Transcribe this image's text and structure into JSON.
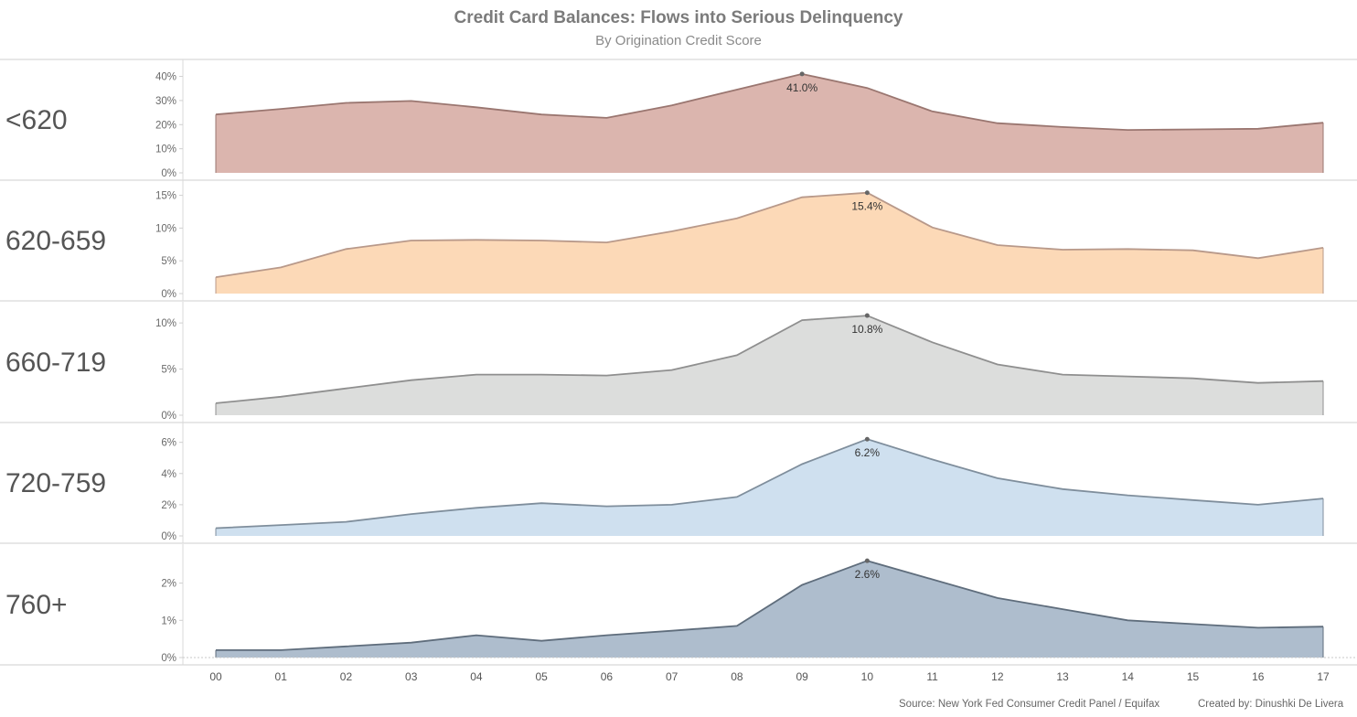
{
  "header": {
    "title": "Credit Card Balances: Flows into Serious Delinquency",
    "subtitle": "By Origination Credit Score"
  },
  "footer": {
    "source": "Source: New York Fed Consumer Credit Panel / Equifax",
    "credit": "Created by: Dinushki De Livera"
  },
  "chart_data": {
    "type": "area",
    "categories": [
      "00",
      "01",
      "02",
      "03",
      "04",
      "05",
      "06",
      "07",
      "08",
      "09",
      "10",
      "11",
      "12",
      "13",
      "14",
      "15",
      "16",
      "17"
    ],
    "series": [
      {
        "name": "<620",
        "color": "#dbb5ae",
        "line_color": "#9a7670",
        "values": [
          24.2,
          26.5,
          29.0,
          29.8,
          27.2,
          24.2,
          22.8,
          28.0,
          34.5,
          41.0,
          35.2,
          25.5,
          20.6,
          19.0,
          17.8,
          18.0,
          18.3,
          20.8
        ],
        "ticks": [
          0,
          10,
          20,
          30,
          40
        ],
        "ymax": 44,
        "peak_index": 9,
        "peak_label": "41.0%"
      },
      {
        "name": "620-659",
        "color": "#fcd9b7",
        "line_color": "#b8998a",
        "values": [
          2.5,
          4.0,
          6.8,
          8.1,
          8.2,
          8.1,
          7.8,
          9.5,
          11.5,
          14.7,
          15.4,
          10.1,
          7.4,
          6.7,
          6.8,
          6.6,
          5.4,
          7.0
        ],
        "ticks": [
          0,
          5,
          10,
          15
        ],
        "ymax": 16.2,
        "peak_index": 10,
        "peak_label": "15.4%"
      },
      {
        "name": "660-719",
        "color": "#dcdddc",
        "line_color": "#8f8f8f",
        "values": [
          1.3,
          2.0,
          2.9,
          3.8,
          4.4,
          4.4,
          4.3,
          4.9,
          6.5,
          10.3,
          10.8,
          7.9,
          5.5,
          4.4,
          4.2,
          4.0,
          3.5,
          3.7
        ],
        "ticks": [
          0,
          5,
          10
        ],
        "ymax": 11.5,
        "peak_index": 10,
        "peak_label": "10.8%"
      },
      {
        "name": "720-759",
        "color": "#cfe0ef",
        "line_color": "#7f8e9c",
        "values": [
          0.5,
          0.7,
          0.9,
          1.4,
          1.8,
          2.1,
          1.9,
          2.0,
          2.5,
          4.6,
          6.2,
          4.9,
          3.7,
          3.0,
          2.6,
          2.3,
          2.0,
          2.4
        ],
        "ticks": [
          0,
          2,
          4,
          6
        ],
        "ymax": 6.8,
        "peak_index": 10,
        "peak_label": "6.2%"
      },
      {
        "name": "760+",
        "color": "#aebdcd",
        "line_color": "#5f6d7c",
        "values": [
          0.2,
          0.2,
          0.3,
          0.4,
          0.6,
          0.45,
          0.6,
          0.72,
          0.85,
          1.95,
          2.6,
          2.1,
          1.6,
          1.3,
          1.0,
          0.9,
          0.8,
          0.83
        ],
        "ticks": [
          0,
          1,
          2
        ],
        "ymax": 2.85,
        "peak_index": 10,
        "peak_label": "2.6%"
      }
    ],
    "tick_suffix": "%",
    "xlabel": "",
    "ylabel": "",
    "grid": false
  }
}
